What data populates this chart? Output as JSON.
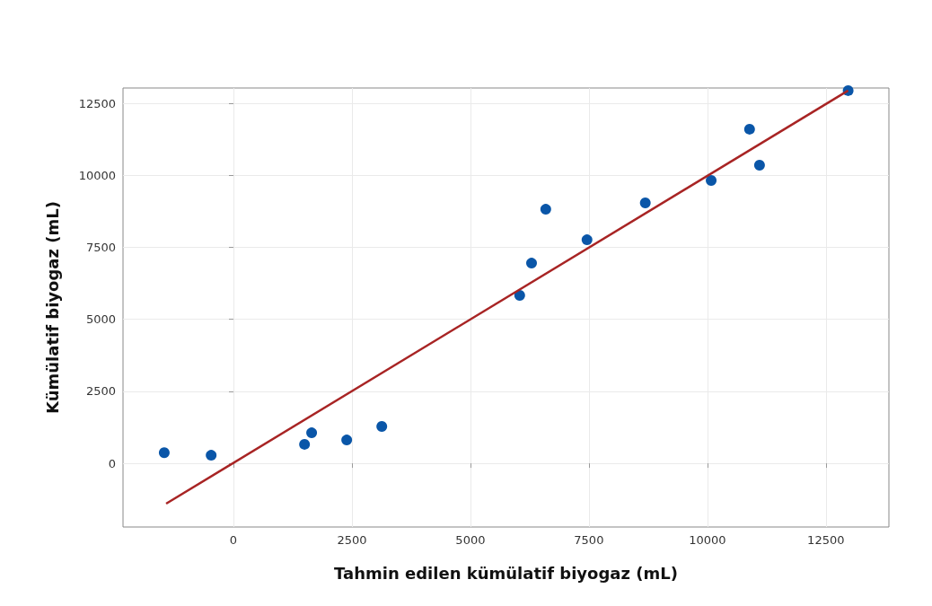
{
  "chart_data": {
    "type": "scatter",
    "xlabel": "Tahmin edilen kümülatif biyogaz (mL)",
    "ylabel": "Kümülatif biyogaz (mL)",
    "xlim": [
      -2330,
      13830
    ],
    "ylim": [
      -2210,
      13030
    ],
    "xticks": [
      0,
      2500,
      5000,
      7500,
      10000,
      12500
    ],
    "yticks": [
      0,
      2500,
      5000,
      7500,
      10000,
      12500
    ],
    "grid": true,
    "marker": "circle",
    "series": [
      {
        "color": "#0a56a8",
        "x": [
          -1460,
          -470,
          1500,
          1650,
          2390,
          3130,
          6040,
          6290,
          6590,
          7460,
          8690,
          10080,
          10890,
          11100,
          12970
        ],
        "values": [
          370,
          280,
          660,
          1060,
          810,
          1280,
          5830,
          6950,
          8820,
          7760,
          9040,
          9820,
          11600,
          10350,
          12940
        ]
      },
      {
        "type": "line",
        "color": "#a82424",
        "marker": "none",
        "line_style": "solid",
        "x": [
          -1420,
          12970
        ],
        "values": [
          -1400,
          12940
        ]
      }
    ]
  }
}
